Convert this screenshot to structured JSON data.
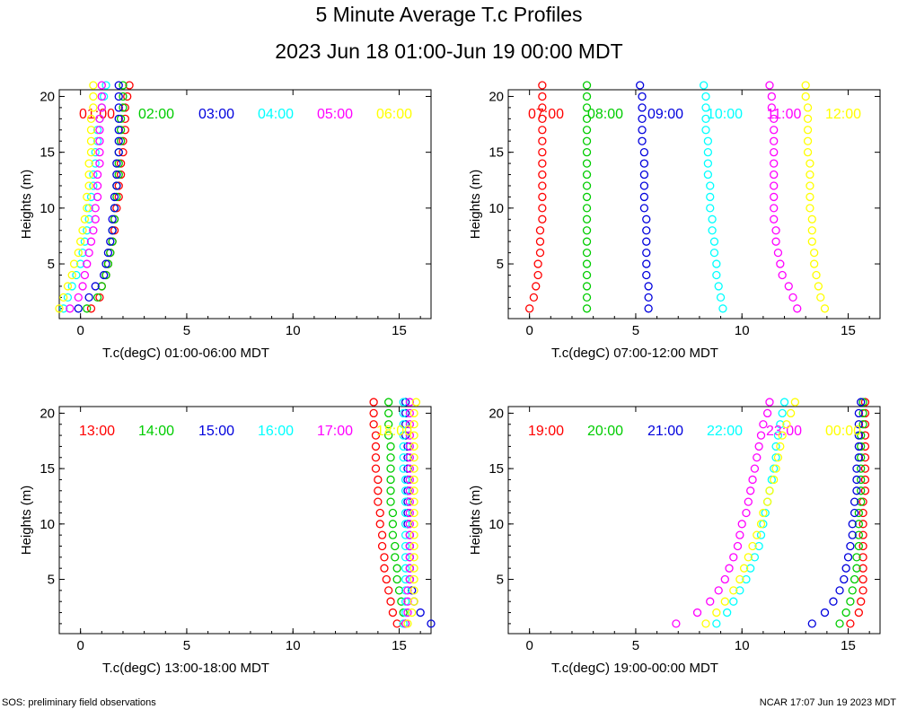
{
  "title": "5 Minute Average T.c Profiles",
  "subtitle": "2023 Jun 18 01:00-Jun 19 00:00 MDT",
  "footer_left": "SOS: preliminary field observations",
  "footer_right": "NCAR 17:07 Jun 19 2023 MDT",
  "chart_data": [
    {
      "type": "scatter",
      "xlabel": "T.c(degC) 01:00-06:00 MDT",
      "ylabel": "Heights (m)",
      "xlim": [
        -1,
        16.5
      ],
      "ylim": [
        0.1,
        20.6
      ],
      "xticks": [
        "0",
        "5",
        "10",
        "15"
      ],
      "yticks": [
        "5",
        "10",
        "15",
        "20"
      ],
      "series": [
        {
          "name": "01:00",
          "color": "#ff0000",
          "x": [
            0.5,
            0.9,
            1.0,
            1.2,
            1.3,
            1.4,
            1.5,
            1.6,
            1.6,
            1.7,
            1.8,
            1.8,
            1.9,
            1.9,
            2.0,
            2.0,
            2.1,
            2.1,
            2.1,
            2.2,
            2.3
          ]
        },
        {
          "name": "02:00",
          "color": "#00cc00",
          "x": [
            0.3,
            0.8,
            1.0,
            1.2,
            1.3,
            1.4,
            1.5,
            1.5,
            1.6,
            1.6,
            1.7,
            1.7,
            1.8,
            1.8,
            1.8,
            1.9,
            1.9,
            1.9,
            2.0,
            2.0,
            2.0
          ]
        },
        {
          "name": "03:00",
          "color": "#0000dd",
          "x": [
            -0.1,
            0.4,
            0.7,
            1.1,
            1.2,
            1.3,
            1.4,
            1.5,
            1.5,
            1.6,
            1.6,
            1.7,
            1.7,
            1.7,
            1.8,
            1.8,
            1.8,
            1.8,
            1.8,
            1.8,
            1.8
          ]
        },
        {
          "name": "04:00",
          "color": "#00ffff",
          "x": [
            -0.8,
            -0.6,
            -0.4,
            -0.2,
            0.0,
            0.1,
            0.2,
            0.3,
            0.4,
            0.4,
            0.5,
            0.6,
            0.6,
            0.7,
            0.7,
            0.8,
            0.8,
            0.9,
            1.0,
            1.1,
            1.2
          ]
        },
        {
          "name": "05:00",
          "color": "#ff00ff",
          "x": [
            -0.5,
            -0.1,
            0.1,
            0.2,
            0.3,
            0.4,
            0.5,
            0.6,
            0.7,
            0.7,
            0.8,
            0.8,
            0.8,
            0.9,
            0.9,
            0.9,
            0.9,
            0.9,
            1.0,
            1.0,
            1.0
          ]
        },
        {
          "name": "06:00",
          "color": "#ffff00",
          "x": [
            -1.0,
            -0.8,
            -0.6,
            -0.4,
            -0.3,
            -0.1,
            0.0,
            0.1,
            0.2,
            0.3,
            0.3,
            0.4,
            0.4,
            0.4,
            0.5,
            0.5,
            0.5,
            0.5,
            0.6,
            0.6,
            0.6
          ]
        }
      ]
    },
    {
      "type": "scatter",
      "xlabel": "T.c(degC) 07:00-12:00 MDT",
      "ylabel": "Heights (m)",
      "xlim": [
        -1,
        16.5
      ],
      "ylim": [
        0.1,
        20.6
      ],
      "xticks": [
        "0",
        "5",
        "10",
        "15"
      ],
      "yticks": [
        "5",
        "10",
        "15",
        "20"
      ],
      "series": [
        {
          "name": "07:00",
          "color": "#ff0000",
          "x": [
            0.0,
            0.2,
            0.3,
            0.4,
            0.4,
            0.5,
            0.5,
            0.5,
            0.6,
            0.6,
            0.6,
            0.6,
            0.6,
            0.6,
            0.6,
            0.6,
            0.6,
            0.6,
            0.6,
            0.6,
            0.6
          ]
        },
        {
          "name": "08:00",
          "color": "#00cc00",
          "x": [
            2.7,
            2.7,
            2.7,
            2.7,
            2.7,
            2.7,
            2.7,
            2.7,
            2.7,
            2.7,
            2.7,
            2.7,
            2.7,
            2.7,
            2.7,
            2.7,
            2.7,
            2.7,
            2.7,
            2.7,
            2.7
          ]
        },
        {
          "name": "09:00",
          "color": "#0000dd",
          "x": [
            5.6,
            5.6,
            5.6,
            5.5,
            5.5,
            5.5,
            5.5,
            5.5,
            5.5,
            5.4,
            5.4,
            5.4,
            5.4,
            5.4,
            5.4,
            5.3,
            5.3,
            5.3,
            5.3,
            5.3,
            5.2
          ]
        },
        {
          "name": "10:00",
          "color": "#00ffff",
          "x": [
            9.1,
            9.0,
            8.9,
            8.8,
            8.8,
            8.7,
            8.7,
            8.6,
            8.6,
            8.5,
            8.5,
            8.5,
            8.4,
            8.4,
            8.4,
            8.4,
            8.3,
            8.3,
            8.3,
            8.3,
            8.2
          ]
        },
        {
          "name": "11:00",
          "color": "#ff00ff",
          "x": [
            12.6,
            12.4,
            12.2,
            11.9,
            11.8,
            11.7,
            11.6,
            11.6,
            11.5,
            11.5,
            11.5,
            11.5,
            11.5,
            11.5,
            11.5,
            11.5,
            11.5,
            11.5,
            11.4,
            11.4,
            11.3
          ]
        },
        {
          "name": "12:00",
          "color": "#ffff00",
          "x": [
            13.9,
            13.7,
            13.6,
            13.5,
            13.4,
            13.4,
            13.3,
            13.3,
            13.3,
            13.2,
            13.2,
            13.2,
            13.2,
            13.2,
            13.1,
            13.1,
            13.1,
            13.1,
            13.1,
            13.0,
            13.0
          ]
        }
      ]
    },
    {
      "type": "scatter",
      "xlabel": "T.c(degC) 13:00-18:00 MDT",
      "ylabel": "Heights (m)",
      "xlim": [
        -1,
        16.5
      ],
      "ylim": [
        0.1,
        20.6
      ],
      "xticks": [
        "0",
        "5",
        "10",
        "15"
      ],
      "yticks": [
        "5",
        "10",
        "15",
        "20"
      ],
      "series": [
        {
          "name": "13:00",
          "color": "#ff0000",
          "x": [
            14.9,
            14.7,
            14.6,
            14.5,
            14.4,
            14.3,
            14.3,
            14.2,
            14.2,
            14.1,
            14.1,
            14.0,
            14.0,
            14.0,
            13.9,
            13.9,
            13.9,
            13.9,
            13.8,
            13.8,
            13.8
          ]
        },
        {
          "name": "14:00",
          "color": "#00cc00",
          "x": [
            15.3,
            15.2,
            15.1,
            15.0,
            14.9,
            14.9,
            14.8,
            14.8,
            14.7,
            14.7,
            14.7,
            14.6,
            14.6,
            14.6,
            14.6,
            14.6,
            14.6,
            14.5,
            14.5,
            14.5,
            14.5
          ]
        },
        {
          "name": "15:00",
          "color": "#0000dd",
          "x": [
            16.5,
            16.0,
            15.7,
            15.6,
            15.5,
            15.5,
            15.5,
            15.5,
            15.5,
            15.4,
            15.4,
            15.4,
            15.4,
            15.4,
            15.4,
            15.4,
            15.4,
            15.3,
            15.3,
            15.3,
            15.3
          ]
        },
        {
          "name": "16:00",
          "color": "#00ffff",
          "x": [
            15.2,
            15.3,
            15.3,
            15.3,
            15.3,
            15.3,
            15.3,
            15.3,
            15.3,
            15.3,
            15.3,
            15.3,
            15.3,
            15.3,
            15.2,
            15.2,
            15.2,
            15.2,
            15.2,
            15.2,
            15.2
          ]
        },
        {
          "name": "17:00",
          "color": "#ff00ff",
          "x": [
            15.3,
            15.4,
            15.4,
            15.4,
            15.5,
            15.5,
            15.5,
            15.5,
            15.5,
            15.5,
            15.5,
            15.5,
            15.5,
            15.5,
            15.5,
            15.5,
            15.5,
            15.5,
            15.5,
            15.5,
            15.5
          ]
        },
        {
          "name": "18:00",
          "color": "#ffff00",
          "x": [
            15.4,
            15.6,
            15.7,
            15.7,
            15.7,
            15.7,
            15.7,
            15.7,
            15.7,
            15.7,
            15.7,
            15.7,
            15.7,
            15.7,
            15.7,
            15.7,
            15.7,
            15.7,
            15.7,
            15.7,
            15.8
          ]
        }
      ]
    },
    {
      "type": "scatter",
      "xlabel": "T.c(degC) 19:00-00:00 MDT",
      "ylabel": "Heights (m)",
      "xlim": [
        -1,
        16.5
      ],
      "ylim": [
        0.1,
        20.6
      ],
      "xticks": [
        "0",
        "5",
        "10",
        "15"
      ],
      "yticks": [
        "5",
        "10",
        "15",
        "20"
      ],
      "series": [
        {
          "name": "19:00",
          "color": "#ff0000",
          "x": [
            15.1,
            15.5,
            15.6,
            15.7,
            15.7,
            15.7,
            15.7,
            15.7,
            15.7,
            15.7,
            15.7,
            15.7,
            15.8,
            15.8,
            15.8,
            15.8,
            15.8,
            15.8,
            15.8,
            15.8,
            15.8
          ]
        },
        {
          "name": "20:00",
          "color": "#00cc00",
          "x": [
            14.6,
            14.9,
            15.1,
            15.2,
            15.3,
            15.4,
            15.4,
            15.5,
            15.5,
            15.5,
            15.5,
            15.6,
            15.6,
            15.6,
            15.6,
            15.6,
            15.6,
            15.6,
            15.7,
            15.7,
            15.7
          ]
        },
        {
          "name": "21:00",
          "color": "#0000dd",
          "x": [
            13.3,
            13.9,
            14.3,
            14.6,
            14.8,
            14.9,
            15.0,
            15.1,
            15.2,
            15.2,
            15.3,
            15.3,
            15.4,
            15.4,
            15.4,
            15.5,
            15.5,
            15.5,
            15.5,
            15.5,
            15.6
          ]
        },
        {
          "name": "22:00",
          "color": "#00ffff",
          "x": [
            8.8,
            9.3,
            9.6,
            9.9,
            10.2,
            10.4,
            10.6,
            10.8,
            10.9,
            11.0,
            11.1,
            11.2,
            11.3,
            11.4,
            11.5,
            11.6,
            11.6,
            11.7,
            11.8,
            11.9,
            12.0
          ]
        },
        {
          "name": "23:00",
          "color": "#ff00ff",
          "x": [
            6.9,
            7.9,
            8.5,
            8.9,
            9.2,
            9.4,
            9.6,
            9.8,
            9.9,
            10.0,
            10.2,
            10.3,
            10.4,
            10.5,
            10.6,
            10.7,
            10.8,
            10.9,
            11.0,
            11.2,
            11.3
          ]
        },
        {
          "name": "00:00",
          "color": "#ffff00",
          "x": [
            8.3,
            8.8,
            9.2,
            9.6,
            9.9,
            10.1,
            10.3,
            10.5,
            10.7,
            10.9,
            11.0,
            11.2,
            11.3,
            11.5,
            11.6,
            11.7,
            11.8,
            11.9,
            12.1,
            12.3,
            12.5
          ]
        }
      ]
    }
  ]
}
